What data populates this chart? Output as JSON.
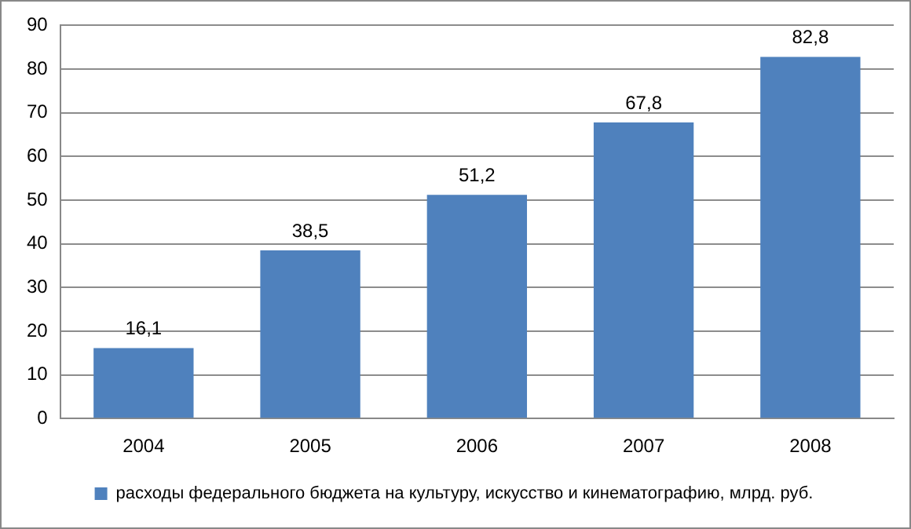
{
  "chart_data": {
    "type": "bar",
    "categories": [
      "2004",
      "2005",
      "2006",
      "2007",
      "2008"
    ],
    "series": [
      {
        "name": "расходы федерального бюджета на культуру, искусство и кинематографию, млрд. руб.",
        "color": "#4f81bd",
        "values": [
          16.1,
          38.5,
          51.2,
          67.8,
          82.8
        ],
        "value_labels": [
          "16,1",
          "38,5",
          "51,2",
          "67,8",
          "82,8"
        ]
      }
    ],
    "ylim": [
      0,
      90
    ],
    "yticks": [
      0,
      10,
      20,
      30,
      40,
      50,
      60,
      70,
      80,
      90
    ],
    "grid": "y",
    "legend": "bottom"
  }
}
